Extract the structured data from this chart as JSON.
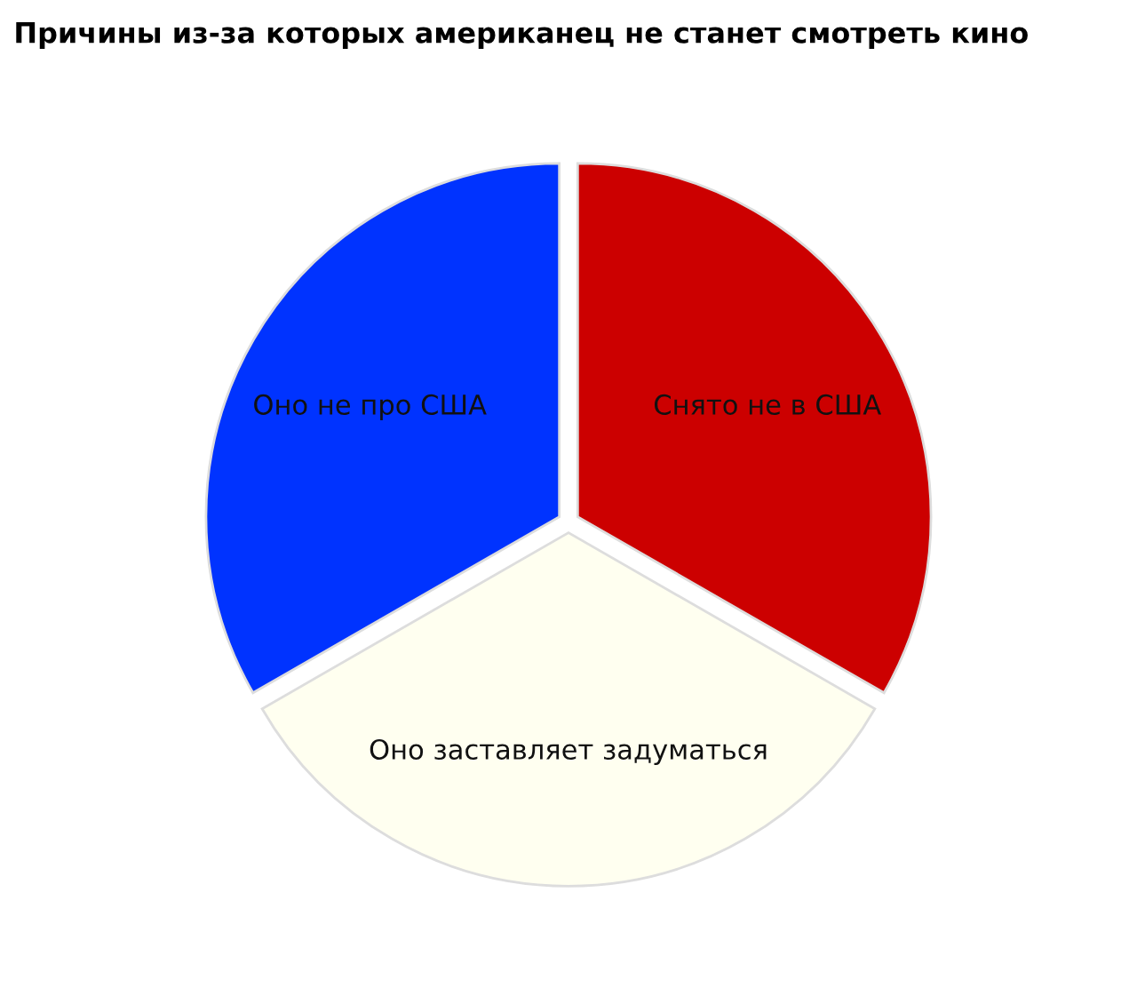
{
  "chart_data": {
    "type": "pie",
    "title": "Причины из-за которых американец не станет смотреть кино",
    "categories": [
      "Снято не в США",
      "Оно заставляет задуматься",
      "Оно не про США"
    ],
    "values": [
      33.3,
      33.4,
      33.3
    ],
    "colors": [
      "#cc0000",
      "#fffff0",
      "#0033ff"
    ],
    "legend": false
  }
}
